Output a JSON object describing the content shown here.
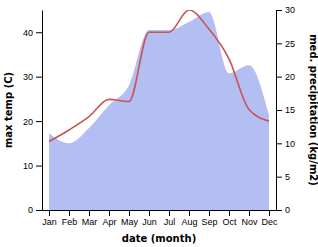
{
  "chart_data": {
    "type": "line",
    "x_label": "date (month)",
    "y_label": "max temp (C)",
    "y2_label": "med. precipitation (kg/m2)",
    "categories": [
      "Jan",
      "Feb",
      "Mar",
      "Apr",
      "May",
      "Jun",
      "Jul",
      "Aug",
      "Sep",
      "Oct",
      "Nov",
      "Dec"
    ],
    "series": [
      {
        "name": "med. precipitation",
        "type": "area",
        "axis": "y2",
        "color": "#b3bff2",
        "values": [
          11.5,
          10,
          12.3,
          15.7,
          18.7,
          27,
          27,
          28.2,
          29.7,
          20.5,
          21.7,
          14.2
        ]
      },
      {
        "name": "max temp",
        "type": "line",
        "color": "#c65553",
        "values": [
          15.4,
          18,
          21,
          24.9,
          24.4,
          40,
          40,
          45,
          40.7,
          34,
          22.6,
          20
        ]
      }
    ],
    "ylim": [
      0,
      45
    ],
    "yticks": [
      0,
      10,
      20,
      30,
      40
    ],
    "y2lim": [
      0,
      30
    ],
    "y2ticks": [
      0,
      5,
      10,
      15,
      20,
      25,
      30
    ]
  }
}
